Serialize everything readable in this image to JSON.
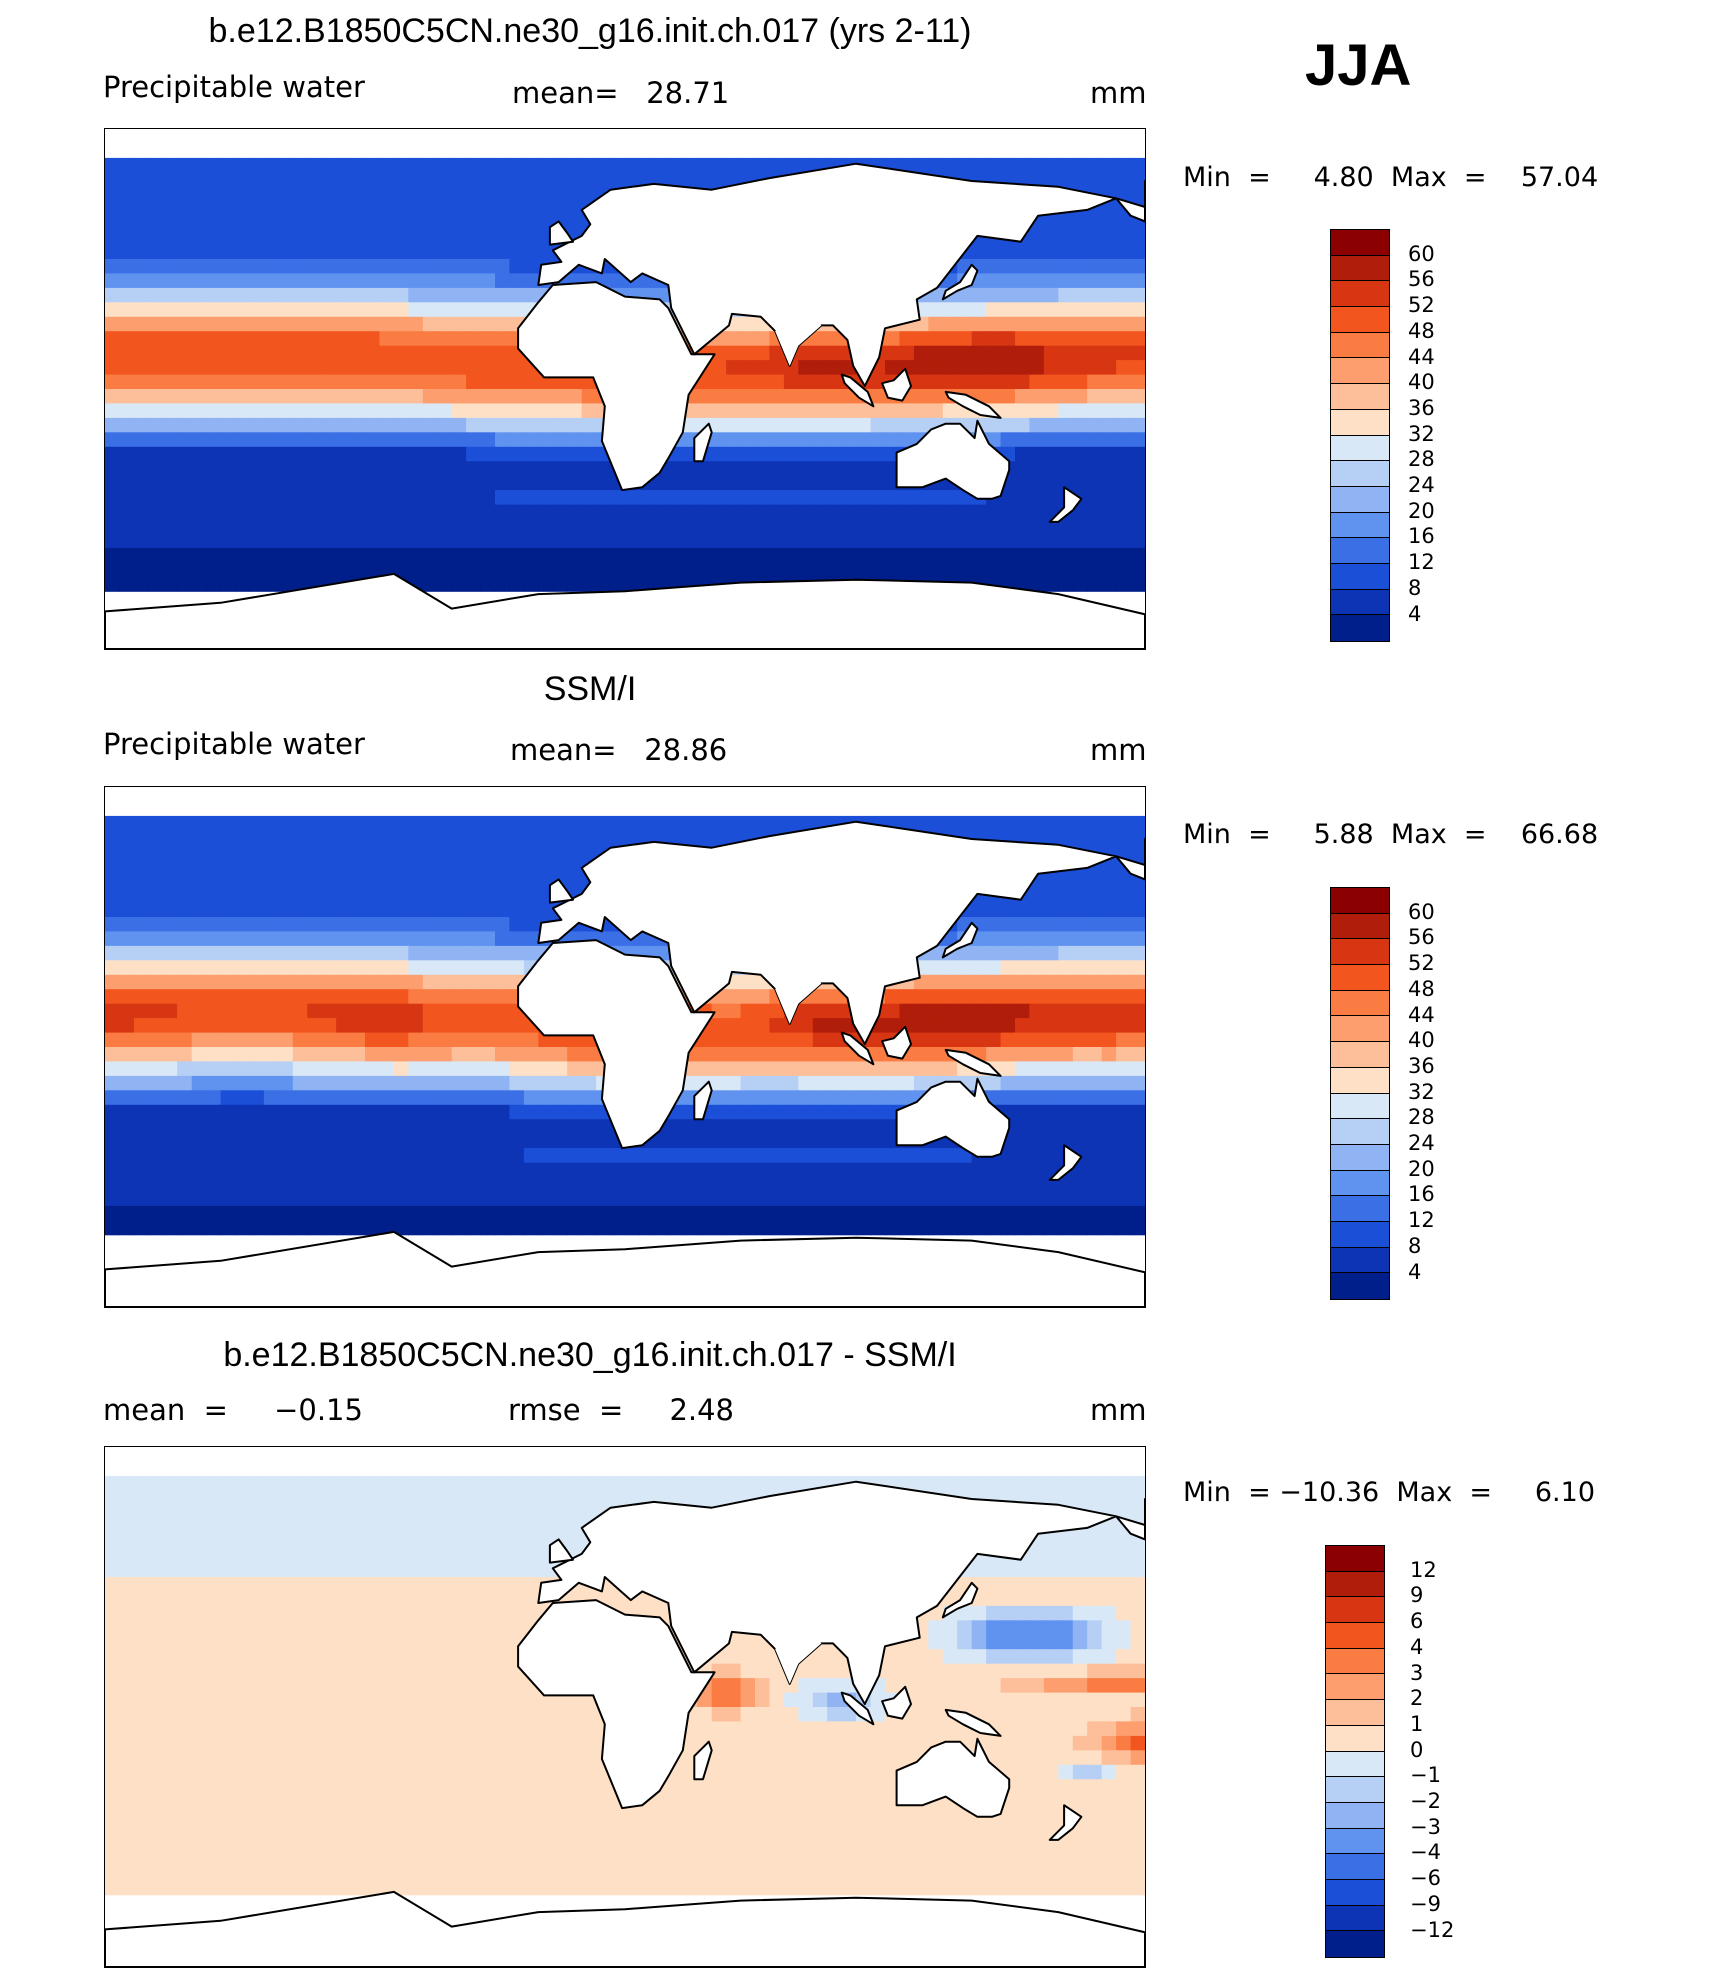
{
  "season": "JJA",
  "units": "mm",
  "panels": [
    {
      "title": "b.e12.B1850C5CN.ne30_g16.init.ch.017 (yrs 2-11)",
      "left_label": "Precipitable water",
      "center_label": "mean=   28.71",
      "right_label": "mm",
      "minmax": "Min  =     4.80  Max  =    57.04"
    },
    {
      "title": "SSM/I",
      "left_label": "Precipitable water",
      "center_label": "mean=   28.86",
      "right_label": "mm",
      "minmax": "Min  =     5.88  Max  =    66.68"
    },
    {
      "title": "b.e12.B1850C5CN.ne30_g16.init.ch.017 - SSM/I",
      "left_label": "mean  =     −0.15",
      "center_label": "rmse  =     2.48",
      "right_label": "mm",
      "minmax": "Min  = −10.36  Max  =     6.10"
    }
  ],
  "chart_data": [
    {
      "type": "heatmap",
      "title": "b.e12.B1850C5CN.ne30_g16.init.ch.017 (yrs 2-11)",
      "variable": "Precipitable water",
      "units": "mm",
      "mean": 28.71,
      "min": 4.8,
      "max": 57.04,
      "colorbar_levels": [
        60,
        56,
        52,
        48,
        44,
        40,
        36,
        32,
        28,
        24,
        20,
        16,
        12,
        8,
        4
      ],
      "colors": [
        "#8b0000",
        "#b01e0b",
        "#d83612",
        "#f2561e",
        "#fa7c43",
        "#fc9e6e",
        "#fdbf9a",
        "#fde0c5",
        "#d9e8f7",
        "#b6d0f5",
        "#8fb3f3",
        "#6093f0",
        "#3a6fe6",
        "#1c4fd8",
        "#0d34b5",
        "#001f8a"
      ],
      "domain": {
        "lon": [
          -160,
          200
        ],
        "lat": [
          -90,
          90
        ]
      }
    },
    {
      "type": "heatmap",
      "title": "SSM/I",
      "variable": "Precipitable water",
      "units": "mm",
      "mean": 28.86,
      "min": 5.88,
      "max": 66.68,
      "colorbar_levels": [
        60,
        56,
        52,
        48,
        44,
        40,
        36,
        32,
        28,
        24,
        20,
        16,
        12,
        8,
        4
      ],
      "colors": [
        "#8b0000",
        "#b01e0b",
        "#d83612",
        "#f2561e",
        "#fa7c43",
        "#fc9e6e",
        "#fdbf9a",
        "#fde0c5",
        "#d9e8f7",
        "#b6d0f5",
        "#8fb3f3",
        "#6093f0",
        "#3a6fe6",
        "#1c4fd8",
        "#0d34b5",
        "#001f8a"
      ],
      "domain": {
        "lon": [
          -160,
          200
        ],
        "lat": [
          -90,
          90
        ]
      }
    },
    {
      "type": "heatmap",
      "title": "b.e12.B1850C5CN.ne30_g16.init.ch.017 - SSM/I",
      "units": "mm",
      "mean": -0.15,
      "rmse": 2.48,
      "min": -10.36,
      "max": 6.1,
      "colorbar_levels": [
        12,
        9,
        6,
        4,
        3,
        2,
        1,
        0,
        -1,
        -2,
        -3,
        -4,
        -6,
        -9,
        -12
      ],
      "colorbar_labels": [
        "12",
        "9",
        "6",
        "4",
        "3",
        "2",
        "1",
        "0",
        "−1",
        "−2",
        "−3",
        "−4",
        "−6",
        "−9",
        "−12"
      ],
      "colors": [
        "#8b0000",
        "#b01e0b",
        "#d83612",
        "#f2561e",
        "#fa7c43",
        "#fc9e6e",
        "#fdbf9a",
        "#fde0c5",
        "#d9e8f7",
        "#b6d0f5",
        "#8fb3f3",
        "#6093f0",
        "#3a6fe6",
        "#1c4fd8",
        "#0d34b5",
        "#001f8a"
      ],
      "domain": {
        "lon": [
          -160,
          200
        ],
        "lat": [
          -90,
          90
        ]
      }
    }
  ]
}
